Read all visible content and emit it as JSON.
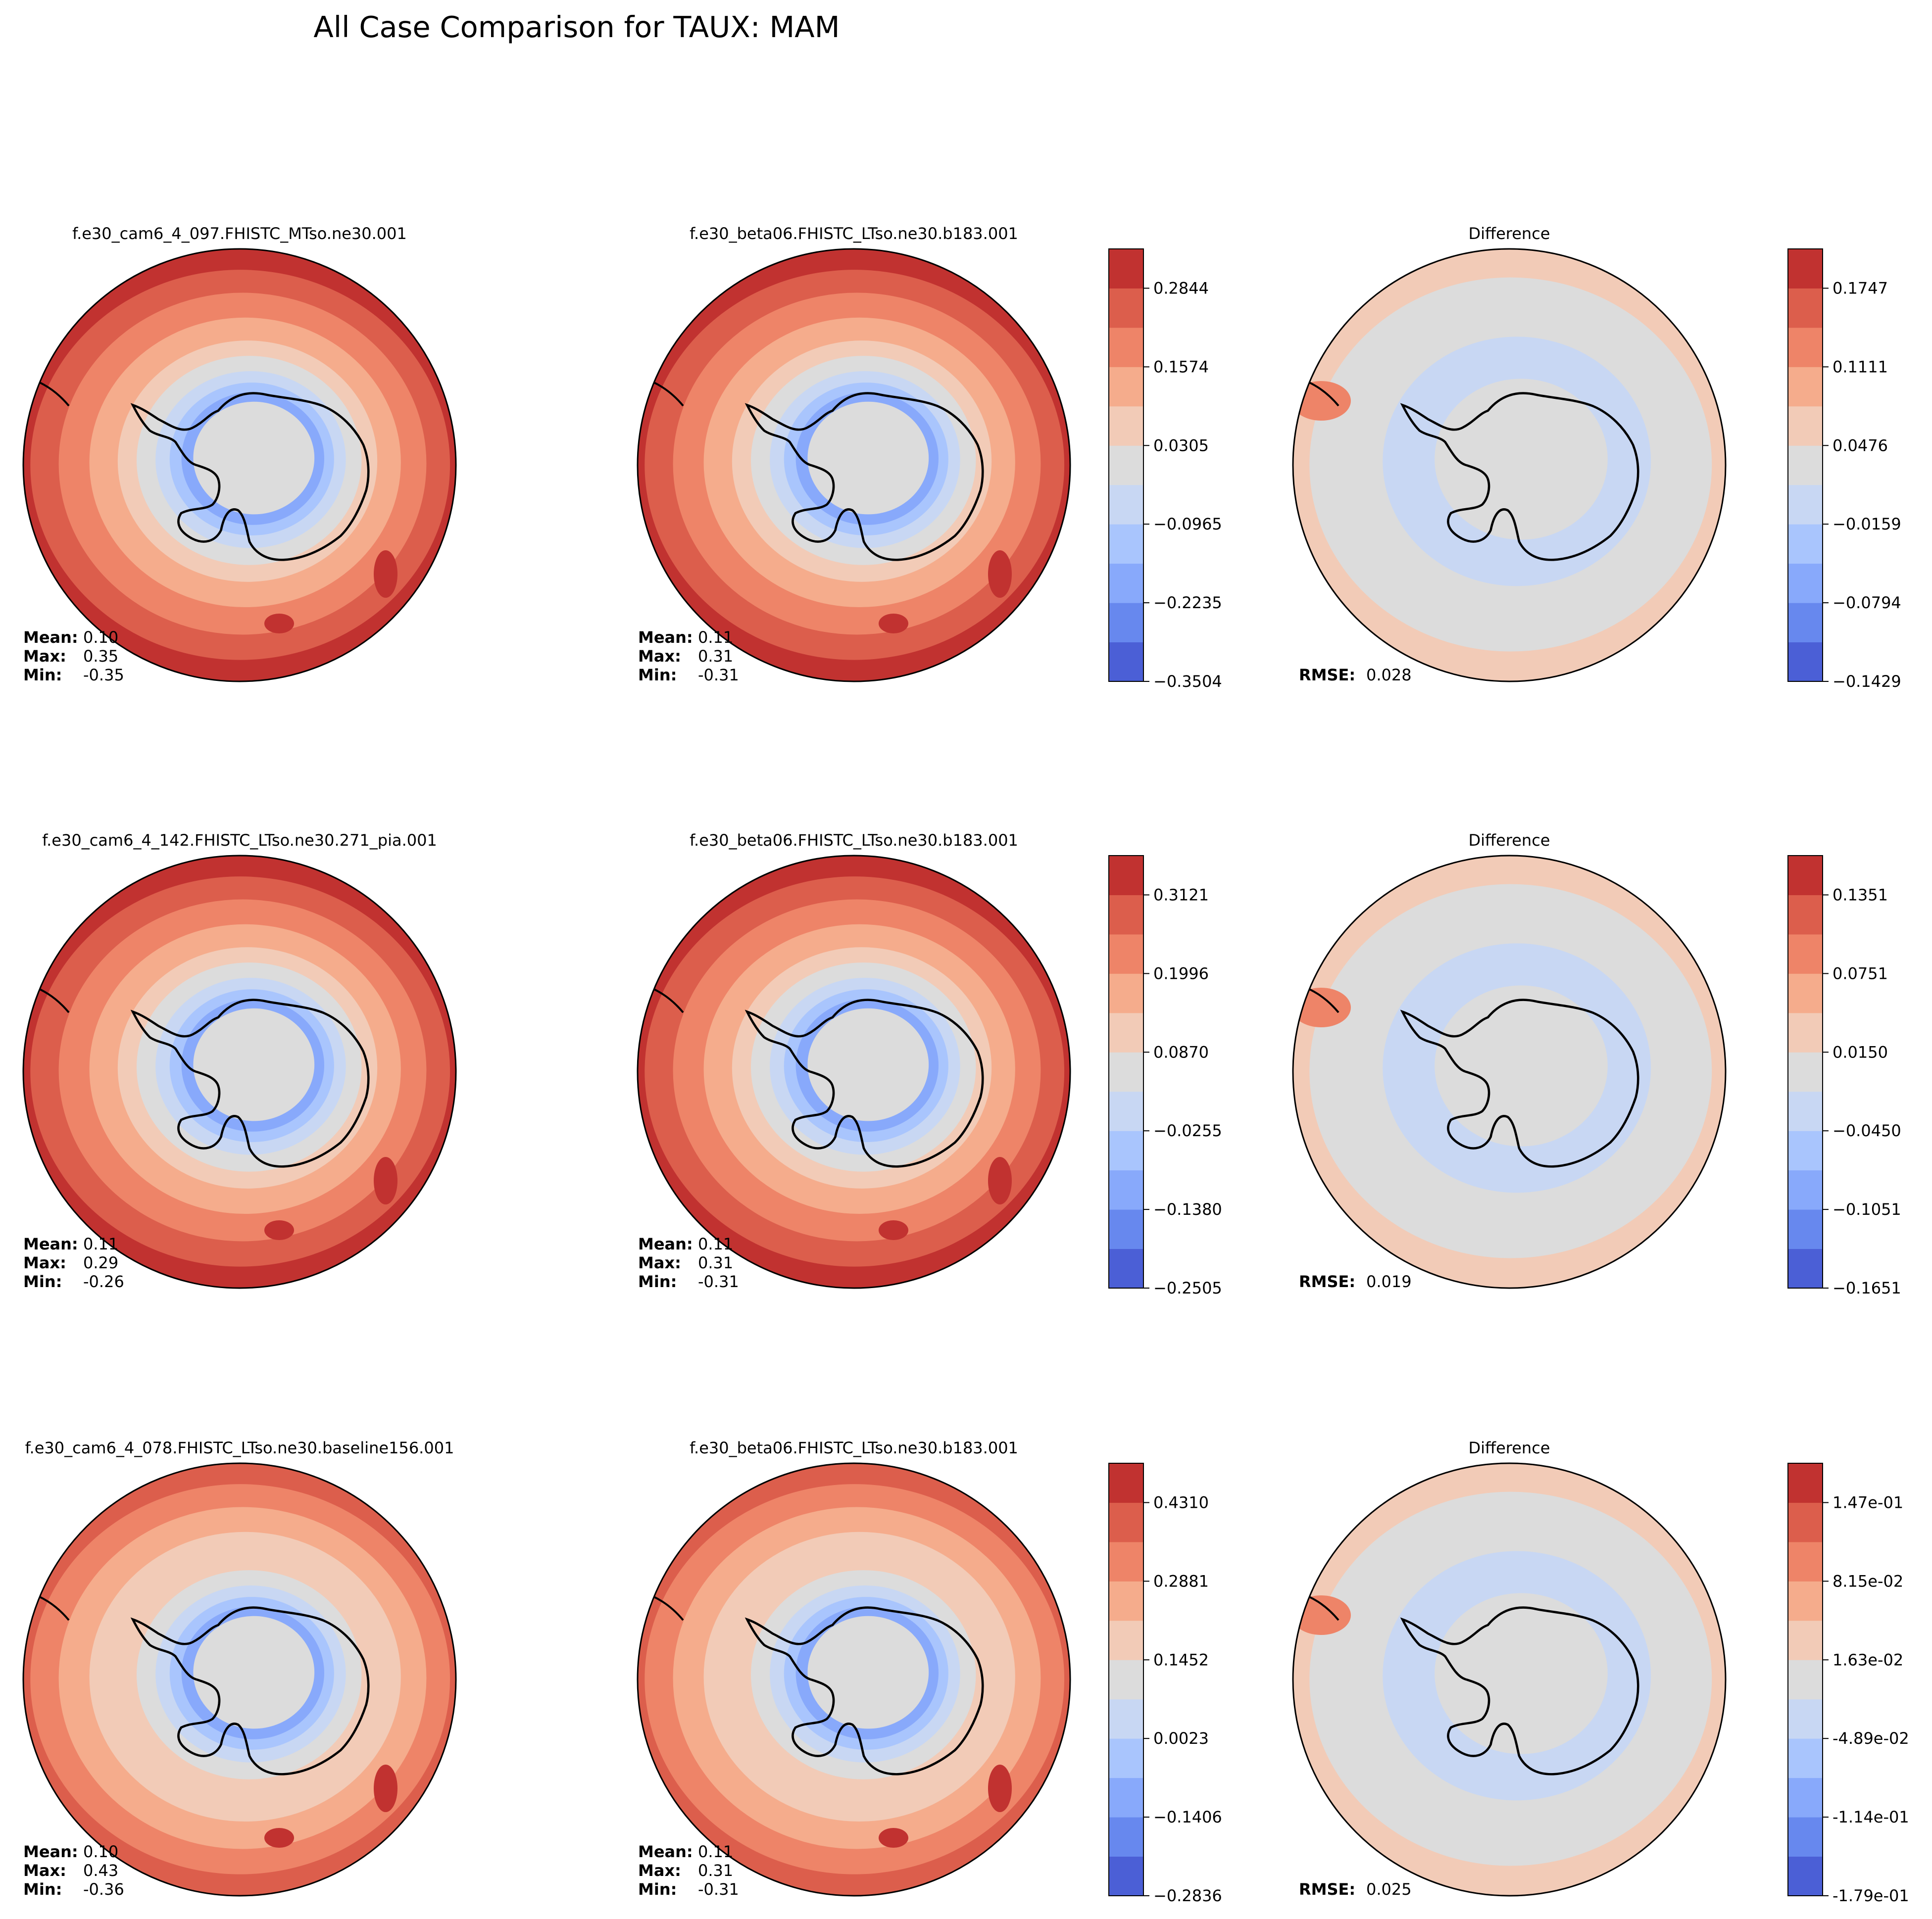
{
  "title": "All Case Comparison for TAUX: MAM",
  "colors": {
    "levels": [
      "#4b5fd6",
      "#6788ee",
      "#88a9fb",
      "#a9c5fd",
      "#c8d7f3",
      "#dcdcdc",
      "#f2cbb7",
      "#f5ac8c",
      "#ee8468",
      "#dc5e4c",
      "#c13230"
    ],
    "coast": "#000000"
  },
  "rows": [
    {
      "test": {
        "title": "f.e30_cam6_4_097.FHISTC_MTso.ne30.001",
        "stats": {
          "mean_label": "Mean:",
          "mean": "0.10",
          "max_label": "Max:",
          "max": "0.35",
          "min_label": "Min:",
          "min": "-0.35"
        }
      },
      "base": {
        "title": "f.e30_beta06.FHISTC_LTso.ne30.b183.001",
        "stats": {
          "mean_label": "Mean:",
          "mean": "0.11",
          "max_label": "Max:",
          "max": "0.31",
          "min_label": "Min:",
          "min": "-0.31"
        }
      },
      "cbar": {
        "ticks": [
          "0.2844",
          "0.1574",
          "0.0305",
          "−0.0965",
          "−0.2235",
          "−0.3504"
        ]
      },
      "diff": {
        "title": "Difference",
        "rmse_label": "RMSE:",
        "rmse": "0.028"
      },
      "dbar": {
        "ticks": [
          "0.1747",
          "0.1111",
          "0.0476",
          "−0.0159",
          "−0.0794",
          "−0.1429"
        ]
      }
    },
    {
      "test": {
        "title": "f.e30_cam6_4_142.FHISTC_LTso.ne30.271_pia.001",
        "stats": {
          "mean_label": "Mean:",
          "mean": "0.11",
          "max_label": "Max:",
          "max": "0.29",
          "min_label": "Min:",
          "min": "-0.26"
        }
      },
      "base": {
        "title": "f.e30_beta06.FHISTC_LTso.ne30.b183.001",
        "stats": {
          "mean_label": "Mean:",
          "mean": "0.11",
          "max_label": "Max:",
          "max": "0.31",
          "min_label": "Min:",
          "min": "-0.31"
        }
      },
      "cbar": {
        "ticks": [
          "0.3121",
          "0.1996",
          "0.0870",
          "−0.0255",
          "−0.1380",
          "−0.2505"
        ]
      },
      "diff": {
        "title": "Difference",
        "rmse_label": "RMSE:",
        "rmse": "0.019"
      },
      "dbar": {
        "ticks": [
          "0.1351",
          "0.0751",
          "0.0150",
          "−0.0450",
          "−0.1051",
          "−0.1651"
        ]
      }
    },
    {
      "test": {
        "title": "f.e30_cam6_4_078.FHISTC_LTso.ne30.baseline156.001",
        "stats": {
          "mean_label": "Mean:",
          "mean": "0.10",
          "max_label": "Max:",
          "max": "0.43",
          "min_label": "Min:",
          "min": "-0.36"
        }
      },
      "base": {
        "title": "f.e30_beta06.FHISTC_LTso.ne30.b183.001",
        "stats": {
          "mean_label": "Mean:",
          "mean": "0.11",
          "max_label": "Max:",
          "max": "0.31",
          "min_label": "Min:",
          "min": "-0.31"
        }
      },
      "cbar": {
        "ticks": [
          "0.4310",
          "0.2881",
          "0.1452",
          "0.0023",
          "−0.1406",
          "−0.2836"
        ]
      },
      "diff": {
        "title": "Difference",
        "rmse_label": "RMSE:",
        "rmse": "0.025"
      },
      "dbar": {
        "ticks": [
          "1.47e-01",
          "8.15e-02",
          "1.63e-02",
          "-4.89e-02",
          "-1.14e-01",
          "-1.79e-01"
        ]
      }
    }
  ],
  "chart_data": [
    {
      "type": "heatmap",
      "projection": "south-polar-stereographic",
      "variable": "TAUX",
      "season": "MAM",
      "panels": [
        {
          "title": "f.e30_cam6_4_097.FHISTC_MTso.ne30.001",
          "mean": 0.1,
          "max": 0.35,
          "min": -0.35
        },
        {
          "title": "f.e30_beta06.FHISTC_LTso.ne30.b183.001",
          "mean": 0.11,
          "max": 0.31,
          "min": -0.31
        },
        {
          "title": "Difference",
          "rmse": 0.028
        }
      ],
      "colorbar": [
        0.2844,
        0.1574,
        0.0305,
        -0.0965,
        -0.2235,
        -0.3504
      ],
      "diff_colorbar": [
        0.1747,
        0.1111,
        0.0476,
        -0.0159,
        -0.0794,
        -0.1429
      ]
    },
    {
      "type": "heatmap",
      "projection": "south-polar-stereographic",
      "variable": "TAUX",
      "season": "MAM",
      "panels": [
        {
          "title": "f.e30_cam6_4_142.FHISTC_LTso.ne30.271_pia.001",
          "mean": 0.11,
          "max": 0.29,
          "min": -0.26
        },
        {
          "title": "f.e30_beta06.FHISTC_LTso.ne30.b183.001",
          "mean": 0.11,
          "max": 0.31,
          "min": -0.31
        },
        {
          "title": "Difference",
          "rmse": 0.019
        }
      ],
      "colorbar": [
        0.3121,
        0.1996,
        0.087,
        -0.0255,
        -0.138,
        -0.2505
      ],
      "diff_colorbar": [
        0.1351,
        0.0751,
        0.015,
        -0.045,
        -0.1051,
        -0.1651
      ]
    },
    {
      "type": "heatmap",
      "projection": "south-polar-stereographic",
      "variable": "TAUX",
      "season": "MAM",
      "panels": [
        {
          "title": "f.e30_cam6_4_078.FHISTC_LTso.ne30.baseline156.001",
          "mean": 0.1,
          "max": 0.43,
          "min": -0.36
        },
        {
          "title": "f.e30_beta06.FHISTC_LTso.ne30.b183.001",
          "mean": 0.11,
          "max": 0.31,
          "min": -0.31
        },
        {
          "title": "Difference",
          "rmse": 0.025
        }
      ],
      "colorbar": [
        0.431,
        0.2881,
        0.1452,
        0.0023,
        -0.1406,
        -0.2836
      ],
      "diff_colorbar": [
        0.147,
        0.0815,
        0.0163,
        -0.0489,
        -0.114,
        -0.179
      ]
    }
  ]
}
